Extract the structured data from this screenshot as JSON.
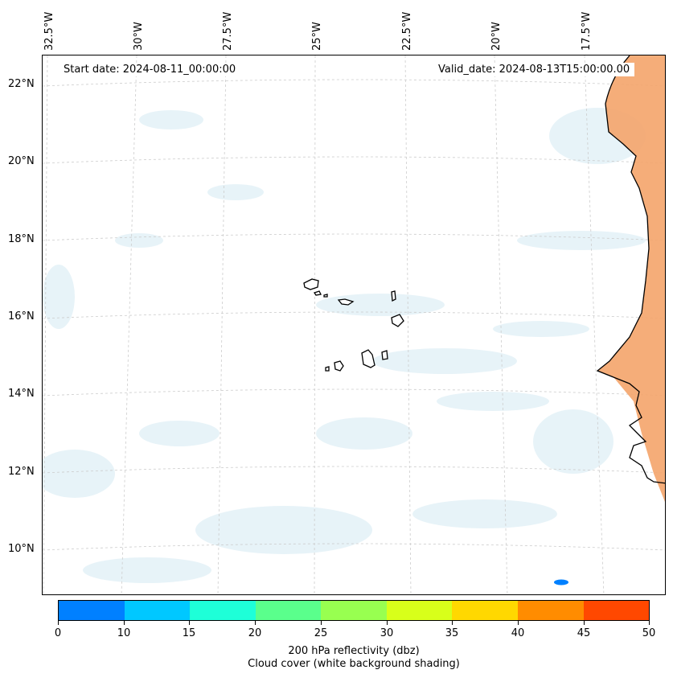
{
  "map": {
    "start_date": "Start date: 2024-08-11_00:00:00",
    "valid_date": "Valid_date: 2024-08-13T15:00:00.00",
    "lon_labels": [
      "32.5°W",
      "30°W",
      "27.5°W",
      "25°W",
      "22.5°W",
      "20°W",
      "17.5°W"
    ],
    "lat_labels": [
      "22°N",
      "20°N",
      "18°N",
      "16°N",
      "14°N",
      "12°N",
      "10°N"
    ],
    "region": "Cape Verde Islands and West African coast",
    "colors": {
      "land_reflectivity": "#f4a46a",
      "cloud_shading": "#e3f1f7",
      "coast": "#000000"
    }
  },
  "colorbar": {
    "ticks": [
      "0",
      "10",
      "15",
      "20",
      "25",
      "30",
      "35",
      "40",
      "45",
      "50"
    ],
    "colors": [
      "#0080ff",
      "#00c8ff",
      "#1effd8",
      "#5aff8c",
      "#98ff50",
      "#d8ff1a",
      "#ffd800",
      "#ff8c00",
      "#ff4800"
    ],
    "label_line1": "200 hPa reflectivity (dbz)",
    "label_line2": "Cloud cover (white background shading)"
  }
}
